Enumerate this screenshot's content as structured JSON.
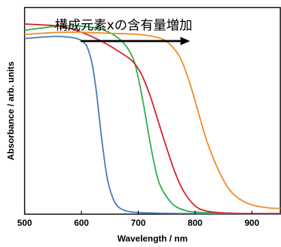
{
  "chart_data": {
    "type": "line",
    "title": "",
    "xlabel": "Wavelength / nm",
    "ylabel": "Absorbance / arb. units",
    "xlim": [
      500,
      950
    ],
    "ylim": [
      0,
      1.0
    ],
    "x_ticks": [
      500,
      600,
      700,
      800,
      900
    ],
    "x_tick_labels": [
      "500",
      "600",
      "700",
      "800",
      "900"
    ],
    "y_ticks": [],
    "grid": false,
    "legend": "none",
    "annotation": {
      "text": "構成元素xの含有量増加",
      "arrow_direction": "right"
    },
    "series": [
      {
        "color": "#4a7ebb",
        "x": [
          500,
          560,
          600,
          615,
          625,
          635,
          645,
          655,
          665,
          680,
          700,
          750,
          800,
          900,
          950
        ],
        "y": [
          0.85,
          0.86,
          0.84,
          0.77,
          0.62,
          0.38,
          0.18,
          0.08,
          0.035,
          0.015,
          0.008,
          0.004,
          0.003,
          0.002,
          0.002
        ]
      },
      {
        "color": "#2db34a",
        "x": [
          500,
          560,
          600,
          640,
          670,
          690,
          700,
          710,
          720,
          730,
          740,
          760,
          780,
          800,
          850,
          900,
          950
        ],
        "y": [
          0.89,
          0.91,
          0.91,
          0.89,
          0.84,
          0.76,
          0.66,
          0.52,
          0.36,
          0.22,
          0.13,
          0.05,
          0.02,
          0.01,
          0.004,
          0.003,
          0.003
        ]
      },
      {
        "color": "#d22630",
        "x": [
          500,
          560,
          600,
          640,
          670,
          690,
          705,
          720,
          735,
          750,
          765,
          780,
          800,
          820,
          850,
          900,
          950
        ],
        "y": [
          0.92,
          0.91,
          0.88,
          0.83,
          0.78,
          0.74,
          0.68,
          0.58,
          0.45,
          0.32,
          0.2,
          0.11,
          0.04,
          0.015,
          0.006,
          0.003,
          0.003
        ]
      },
      {
        "color": "#f28c28",
        "x": [
          500,
          560,
          600,
          650,
          700,
          740,
          760,
          775,
          790,
          805,
          820,
          840,
          860,
          880,
          900,
          930,
          950
        ],
        "y": [
          0.87,
          0.88,
          0.88,
          0.875,
          0.87,
          0.85,
          0.81,
          0.75,
          0.64,
          0.5,
          0.36,
          0.22,
          0.12,
          0.07,
          0.045,
          0.03,
          0.028
        ]
      }
    ]
  }
}
